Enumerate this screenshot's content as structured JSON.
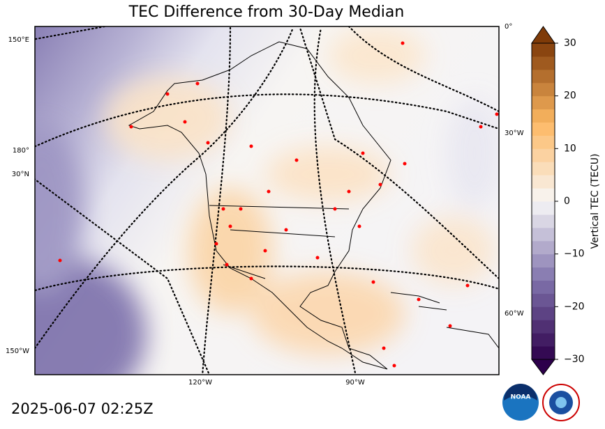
{
  "header": {
    "title": "TEC Difference from 30-Day Median",
    "timestamp": "2025-06-07 02:25Z"
  },
  "map": {
    "graticule_labels": [
      "150°E",
      "180°",
      "30°N",
      "150°W",
      "120°W",
      "90°W",
      "0°",
      "30°W",
      "60°W"
    ]
  },
  "colorbar": {
    "label": "Vertical TEC (TECU)",
    "lim": [
      -30,
      30
    ],
    "ticks": [
      30,
      20,
      10,
      0,
      {
        "value": -10,
        "label": "−10"
      },
      {
        "value": -20,
        "label": "−20"
      },
      {
        "value": -30,
        "label": "−30"
      }
    ],
    "step": 2.5,
    "colormap": [
      "#2d004b",
      "#8073ac",
      "#f7f7f7",
      "#fdb863",
      "#7f3b08"
    ]
  }
}
